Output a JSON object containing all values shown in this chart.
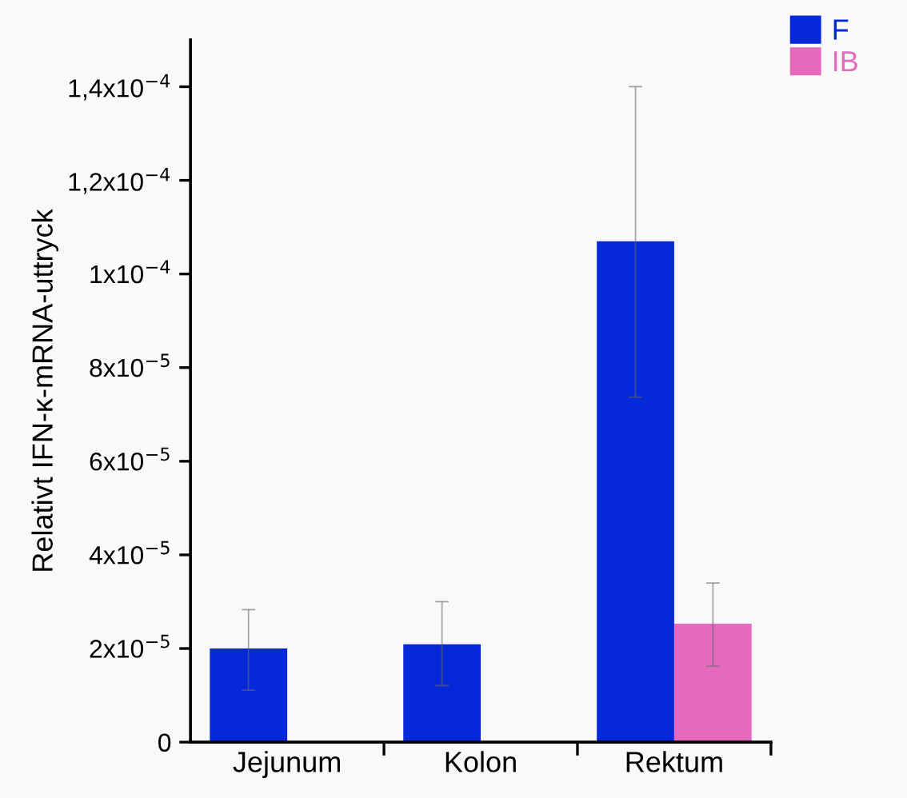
{
  "chart_data": {
    "type": "bar",
    "ylabel": "Relativt IFN-κ-mRNA-uttryck",
    "categories": [
      "Jejunum",
      "Kolon",
      "Rektum"
    ],
    "series": [
      {
        "name": "F",
        "color": "#0529d8",
        "values": [
          2e-05,
          2.09e-05,
          0.000107
        ],
        "errors": [
          [
            1.11e-05,
            2.83e-05
          ],
          [
            1.21e-05,
            3e-05
          ],
          [
            7.37e-05,
            0.00014
          ]
        ]
      },
      {
        "name": "IB",
        "color": "#e46abd",
        "values": [
          null,
          null,
          2.53e-05
        ],
        "errors": [
          null,
          null,
          [
            1.62e-05,
            3.4e-05
          ]
        ]
      }
    ],
    "ylim": [
      0,
      0.00015
    ],
    "yticks": [
      0,
      {
        "value": 2e-05,
        "label": "2x10$^{−5}$"
      },
      {
        "value": 4e-05,
        "label": "4x10$^{−5}$"
      },
      {
        "value": 6e-05,
        "label": "6x10$^{−5}$"
      },
      {
        "value": 8e-05,
        "label": "8x10$^{−5}$"
      },
      {
        "value": 0.0001,
        "label": "1x10$^{−4}$"
      },
      {
        "value": 0.00012,
        "label": "1,2x10$^{−4}$"
      },
      {
        "value": 0.00014,
        "label": "1,4x10$^{−4}$"
      }
    ],
    "grid": false,
    "legend": "top right"
  }
}
